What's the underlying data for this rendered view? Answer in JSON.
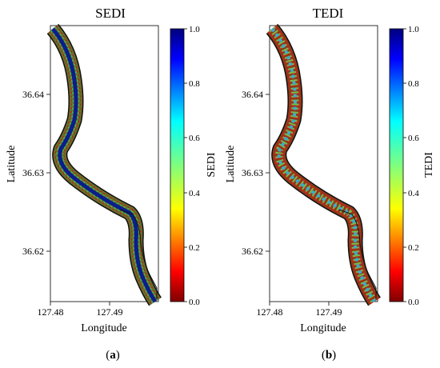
{
  "panels": [
    {
      "title": "SEDI",
      "colorbar_label": "SEDI",
      "xlabel": "Longitude",
      "ylabel": "Latitude",
      "xticks": [
        "127.48",
        "127.49"
      ],
      "yticks": [
        "36.64",
        "36.63",
        "36.62"
      ],
      "cbar_ticks": [
        "1.0",
        "0.8",
        "0.6",
        "0.4",
        "0.2",
        "0.0"
      ],
      "caption_letter": "a",
      "caption_open": "(",
      "caption_close": ")"
    },
    {
      "title": "TEDI",
      "colorbar_label": "TEDI",
      "xlabel": "Longitude",
      "ylabel": "Latitude",
      "xticks": [
        "127.48",
        "127.49"
      ],
      "yticks": [
        "36.64",
        "36.63",
        "36.62"
      ],
      "cbar_ticks": [
        "1.0",
        "0.8",
        "0.6",
        "0.4",
        "0.2",
        "0.0"
      ],
      "caption_letter": "b",
      "caption_open": "(",
      "caption_close": ")"
    }
  ],
  "colormap": "jet_r",
  "colors": {
    "boundary": "#111111",
    "cbar_top": "#00007f",
    "cbar_bottom": "#7f0000"
  }
}
